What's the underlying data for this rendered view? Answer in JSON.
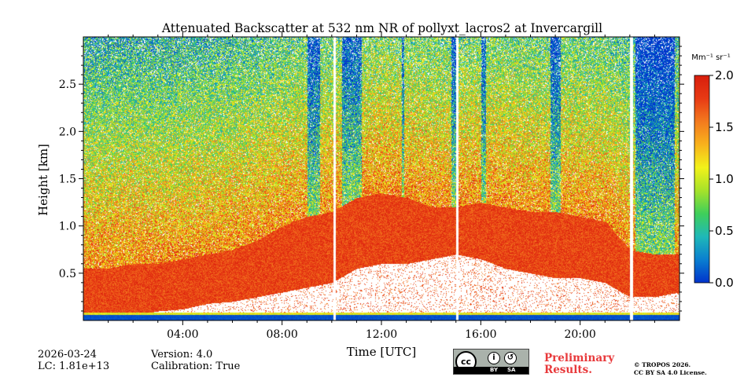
{
  "chart_data": {
    "type": "heatmap",
    "title": "Attenuated Backscatter at 532 nm NR of pollyxt_lacros2 at Invercargill",
    "xlabel": "Time [UTC]",
    "ylabel": "Height [km]",
    "x_range_hours": [
      0,
      24
    ],
    "y_range_km": [
      0,
      3.0
    ],
    "x_ticks": [
      {
        "value": 4,
        "label": "04:00"
      },
      {
        "value": 8,
        "label": "08:00"
      },
      {
        "value": 12,
        "label": "12:00"
      },
      {
        "value": 16,
        "label": "16:00"
      },
      {
        "value": 20,
        "label": "20:00"
      }
    ],
    "y_ticks": [
      {
        "value": 0.5,
        "label": "0.5"
      },
      {
        "value": 1.0,
        "label": "1.0"
      },
      {
        "value": 1.5,
        "label": "1.5"
      },
      {
        "value": 2.0,
        "label": "2.0"
      },
      {
        "value": 2.5,
        "label": "2.5"
      }
    ],
    "colorbar": {
      "unit": "Mm⁻¹ sr⁻¹",
      "range": [
        0.0,
        2.0
      ],
      "ticks": [
        {
          "value": 0.0,
          "label": "0.0"
        },
        {
          "value": 0.5,
          "label": "0.5"
        },
        {
          "value": 1.0,
          "label": "1.0"
        },
        {
          "value": 1.5,
          "label": "1.5"
        },
        {
          "value": 2.0,
          "label": "2.0"
        }
      ],
      "colors": [
        "#0033cc",
        "#0a7fd0",
        "#1fb8b8",
        "#3fcf5a",
        "#a6e22a",
        "#f2f21a",
        "#f8b21c",
        "#f37a1e",
        "#e83a14",
        "#d81e0c"
      ]
    },
    "gap_intervals_hours": [
      [
        10.06,
        10.16
      ],
      [
        15.0,
        15.08
      ],
      [
        22.0,
        22.12
      ]
    ],
    "clear_sky_profile": {
      "hours": [
        0,
        1,
        2,
        3,
        4,
        5,
        6,
        7,
        8,
        9,
        10,
        11,
        12,
        13,
        14,
        15,
        16,
        17,
        18,
        19,
        20,
        21,
        22,
        23,
        24
      ],
      "signal_top_km": [
        3.0,
        3.0,
        3.0,
        3.0,
        3.0,
        3.0,
        3.0,
        3.0,
        3.0,
        3.0,
        3.0,
        3.0,
        3.0,
        3.0,
        3.0,
        3.0,
        3.0,
        3.0,
        3.0,
        3.0,
        3.0,
        3.0,
        3.0,
        3.0,
        3.0
      ],
      "aerosol_top_km": [
        0.55,
        0.55,
        0.6,
        0.6,
        0.65,
        0.7,
        0.75,
        0.85,
        1.0,
        1.1,
        1.15,
        1.3,
        1.35,
        1.3,
        1.2,
        1.2,
        1.25,
        1.2,
        1.15,
        1.15,
        1.1,
        1.05,
        0.75,
        0.7,
        0.7
      ],
      "aerosol_bottom_km": [
        0.05,
        0.05,
        0.05,
        0.1,
        0.12,
        0.18,
        0.2,
        0.25,
        0.3,
        0.35,
        0.4,
        0.55,
        0.6,
        0.6,
        0.65,
        0.7,
        0.65,
        0.55,
        0.5,
        0.45,
        0.45,
        0.4,
        0.25,
        0.25,
        0.3
      ]
    },
    "low_signal_columns_hours": [
      [
        9.0,
        9.5
      ],
      [
        10.4,
        11.2
      ],
      [
        12.8,
        12.9
      ],
      [
        14.8,
        15.0
      ],
      [
        16.0,
        16.2
      ],
      [
        18.8,
        19.2
      ],
      [
        22.2,
        23.8
      ]
    ]
  },
  "footer": {
    "date": "2026-03-24",
    "lc": "LC: 1.81e+13",
    "version": "Version: 4.0",
    "calibration": "Calibration: True",
    "license_badge": {
      "cc": "cc",
      "by": "BY",
      "sa": "SA"
    },
    "preliminary_line1": "Preliminary",
    "preliminary_line2": "Results.",
    "copyright_line1": "© TROPOS 2026.",
    "copyright_line2": "CC BY SA 4.0 License."
  }
}
